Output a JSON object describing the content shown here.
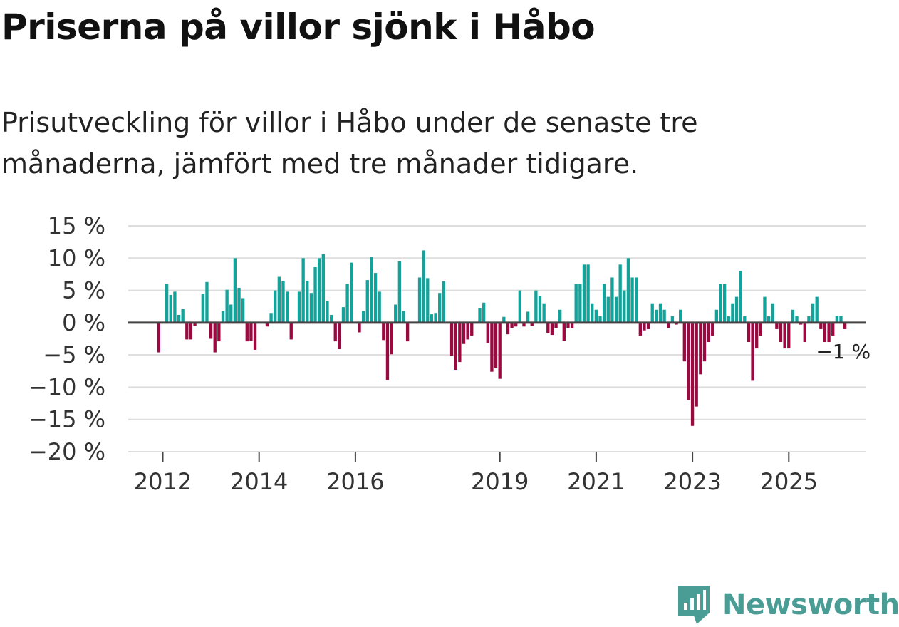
{
  "title": "Priserna på villor sjönk i Håbo",
  "subtitle": "Prisutveckling för villor i Håbo under de senaste tre månaderna, jämfört med tre månader tidigare.",
  "brand": {
    "name": "Newsworthy"
  },
  "colors": {
    "positive": "#14a39a",
    "negative": "#9a0a40",
    "grid": "#dddddd",
    "zero_line": "#444444",
    "brand": "#4a9d95"
  },
  "chart_data": {
    "type": "bar",
    "title": "Priserna på villor sjönk i Håbo",
    "xlabel": "",
    "ylabel": "",
    "ylim": [
      -20,
      15
    ],
    "y_ticks": [
      15,
      10,
      5,
      0,
      -5,
      -10,
      -15,
      -20
    ],
    "y_tick_labels": [
      "15 %",
      "10 %",
      "5 %",
      "0 %",
      "−5 %",
      "−10 %",
      "−15 %",
      "−20 %"
    ],
    "x_start": 2011.25,
    "bar_step_years": 0.08333,
    "x_ticks": [
      2012,
      2014,
      2016,
      2019,
      2021,
      2023,
      2025
    ],
    "x_tick_labels": [
      "2012",
      "2014",
      "2016",
      "2019",
      "2021",
      "2023",
      "2025"
    ],
    "values": [
      null,
      null,
      null,
      null,
      null,
      null,
      null,
      null,
      -4.6,
      null,
      6,
      4.3,
      4.8,
      1.2,
      2.1,
      -2.6,
      -2.6,
      -0.5,
      null,
      4.5,
      6.3,
      -2.5,
      -4.6,
      -2.9,
      1.8,
      5.1,
      2.8,
      10,
      5.4,
      3.8,
      -2.9,
      -2.8,
      -4.2,
      null,
      null,
      -0.6,
      1.5,
      5,
      7.1,
      6.5,
      4.8,
      -2.6,
      null,
      4.8,
      10,
      6.5,
      4.6,
      8.6,
      10,
      10.6,
      3.3,
      1.2,
      -2.9,
      -4.1,
      2.4,
      6,
      9.3,
      0,
      -1.5,
      1.8,
      6.6,
      10.2,
      7.7,
      4.8,
      -2.7,
      -8.9,
      -4.9,
      2.8,
      9.5,
      1.8,
      -2.9,
      null,
      null,
      7,
      11.2,
      6.9,
      1.3,
      1.5,
      4.6,
      6.4,
      null,
      -5.1,
      -7.3,
      -6.1,
      -3.3,
      -2.6,
      -2,
      null,
      2.3,
      3.1,
      -3.2,
      -7.6,
      -7,
      -8.7,
      0.9,
      -1.8,
      -0.8,
      -0.6,
      5,
      -0.6,
      1.7,
      -0.5,
      5,
      4.1,
      3,
      -1.6,
      -1.9,
      -0.8,
      2,
      -2.8,
      -0.8,
      -0.9,
      6,
      6,
      9,
      9,
      3,
      2,
      1,
      6,
      4,
      7,
      4,
      9,
      5,
      10,
      7,
      7,
      -2,
      -1.2,
      -1,
      3,
      2,
      3,
      2,
      -0.8,
      1,
      -0.3,
      2,
      -6,
      -12,
      -16,
      -13,
      -8,
      -6,
      -3,
      -2,
      2,
      6,
      6,
      1,
      3,
      4,
      8,
      1,
      -3,
      -9,
      -4,
      -2,
      4,
      1,
      3,
      -1,
      -3,
      -4,
      -4,
      2,
      1,
      -0.3,
      -3,
      1,
      3,
      4,
      -1,
      -3,
      -3,
      -2,
      1,
      1,
      -1
    ],
    "last_value_label": "−1 %"
  }
}
